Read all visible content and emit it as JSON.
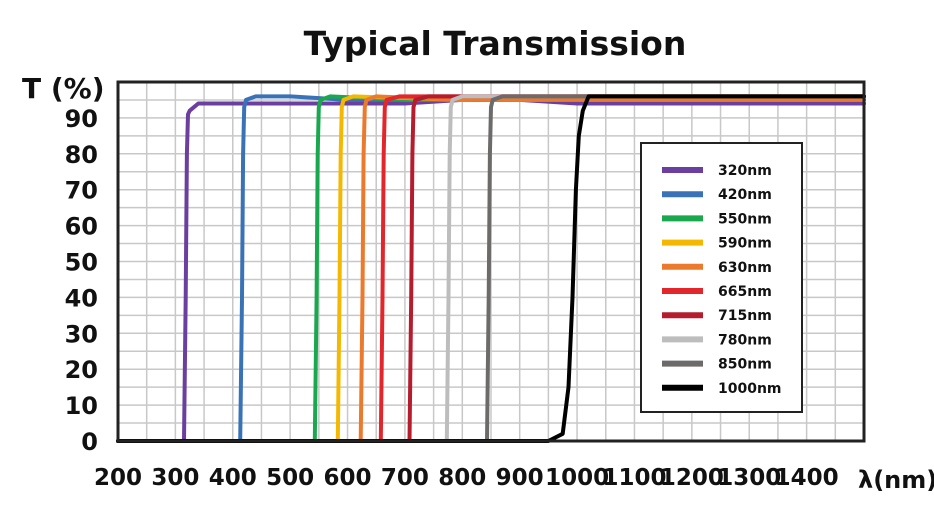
{
  "chart_data": {
    "type": "line",
    "title": "Typical Transmission",
    "ylabel": "T (%)",
    "xlabel": "λ(nm)",
    "xlim": [
      200,
      1500
    ],
    "ylim": [
      0,
      100
    ],
    "xticks": [
      200,
      300,
      400,
      500,
      600,
      700,
      800,
      900,
      1000,
      1100,
      1200,
      1300,
      1400
    ],
    "yticks": [
      0,
      10,
      20,
      30,
      40,
      50,
      60,
      70,
      80,
      90
    ],
    "grid": true,
    "legend_position": "right",
    "series": [
      {
        "name": "320nm",
        "color": "#6b3fa0",
        "x": [
          200,
          315,
          318,
          320,
          322,
          325,
          340,
          400,
          500,
          600,
          700,
          800,
          900,
          1000,
          1200,
          1500
        ],
        "y": [
          0,
          0,
          40,
          80,
          91,
          92,
          94,
          94,
          94,
          94,
          94,
          95,
          95,
          94,
          94,
          94
        ]
      },
      {
        "name": "420nm",
        "color": "#3a72b8",
        "x": [
          200,
          413,
          416,
          418,
          420,
          423,
          440,
          500,
          600,
          700,
          800,
          900,
          1000,
          1200,
          1500
        ],
        "y": [
          0,
          0,
          40,
          80,
          93,
          95,
          96,
          96,
          95,
          95,
          95,
          95,
          95,
          95,
          95
        ]
      },
      {
        "name": "550nm",
        "color": "#1aa84f",
        "x": [
          200,
          543,
          546,
          548,
          550,
          553,
          570,
          700,
          900,
          1100,
          1500
        ],
        "y": [
          0,
          0,
          40,
          80,
          93,
          95,
          96,
          95,
          95,
          95,
          95
        ]
      },
      {
        "name": "590nm",
        "color": "#f5b800",
        "x": [
          200,
          583,
          586,
          588,
          590,
          593,
          610,
          800,
          1000,
          1500
        ],
        "y": [
          0,
          0,
          40,
          80,
          93,
          95,
          96,
          95,
          96,
          96
        ]
      },
      {
        "name": "630nm",
        "color": "#ec7a2c",
        "x": [
          200,
          623,
          626,
          628,
          630,
          633,
          650,
          800,
          1000,
          1500
        ],
        "y": [
          0,
          0,
          40,
          80,
          93,
          95,
          96,
          95,
          95,
          95
        ]
      },
      {
        "name": "665nm",
        "color": "#e3262b",
        "x": [
          200,
          658,
          661,
          663,
          665,
          668,
          690,
          800,
          1000,
          1500
        ],
        "y": [
          0,
          0,
          40,
          80,
          93,
          95,
          96,
          96,
          96,
          96
        ]
      },
      {
        "name": "715nm",
        "color": "#b51d2e",
        "x": [
          200,
          708,
          711,
          713,
          715,
          718,
          740,
          900,
          1100,
          1500
        ],
        "y": [
          0,
          0,
          40,
          80,
          93,
          95,
          96,
          96,
          96,
          96
        ]
      },
      {
        "name": "780nm",
        "color": "#bdbdbd",
        "x": [
          200,
          773,
          776,
          778,
          780,
          783,
          800,
          900,
          1100,
          1500
        ],
        "y": [
          0,
          0,
          40,
          80,
          93,
          95,
          96,
          96,
          96,
          96
        ]
      },
      {
        "name": "850nm",
        "color": "#6d6a6a",
        "x": [
          200,
          843,
          846,
          848,
          850,
          853,
          870,
          1000,
          1200,
          1500
        ],
        "y": [
          0,
          0,
          40,
          80,
          93,
          95,
          96,
          96,
          96,
          96
        ]
      },
      {
        "name": "1000nm",
        "color": "#000000",
        "x": [
          200,
          950,
          975,
          985,
          992,
          998,
          1003,
          1010,
          1020,
          1050,
          1100,
          1200,
          1300,
          1500
        ],
        "y": [
          0,
          0,
          2,
          15,
          40,
          70,
          85,
          92,
          96,
          96,
          96,
          96,
          96,
          96
        ]
      }
    ]
  }
}
